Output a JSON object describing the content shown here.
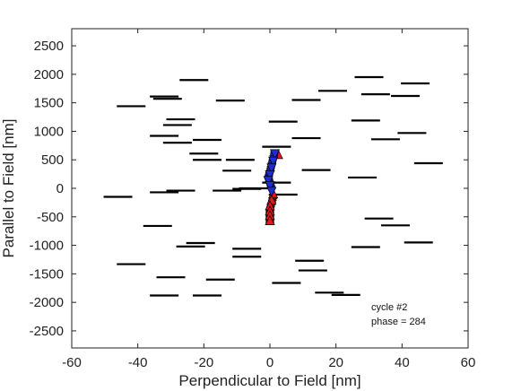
{
  "chart_data": {
    "type": "scatter",
    "title": "",
    "xlabel": "Perpendicular to Field [nm]",
    "ylabel": "Parallel to Field [nm]",
    "xlim": [
      -60,
      60
    ],
    "ylim": [
      -2800,
      2800
    ],
    "xticks": [
      -60,
      -40,
      -20,
      0,
      20,
      40,
      60
    ],
    "yticks": [
      -2500,
      -2000,
      -1500,
      -1000,
      -500,
      0,
      500,
      1000,
      1500,
      2000,
      2500
    ],
    "grid": false,
    "annotations": [
      "cycle #2",
      "phase = 284"
    ],
    "colors": {
      "segments": "#000000",
      "blue_series": "#1f2bd6",
      "red_series": "#e8161c",
      "outline": "#000000"
    },
    "segments": [
      [
        -42,
        1440
      ],
      [
        -32,
        1610
      ],
      [
        -31,
        1570
      ],
      [
        -23,
        1900
      ],
      [
        -12,
        1540
      ],
      [
        -27,
        1210
      ],
      [
        -28,
        1110
      ],
      [
        -32,
        920
      ],
      [
        -28,
        800
      ],
      [
        -19,
        850
      ],
      [
        -20,
        610
      ],
      [
        -19,
        500
      ],
      [
        -9,
        500
      ],
      [
        -10,
        310
      ],
      [
        -46,
        -150
      ],
      [
        -32,
        -70
      ],
      [
        -27,
        -40
      ],
      [
        -13,
        -40
      ],
      [
        -7,
        -10
      ],
      [
        -5,
        0
      ],
      [
        -34,
        -660
      ],
      [
        -21,
        -960
      ],
      [
        -24,
        -1020
      ],
      [
        -7,
        -1060
      ],
      [
        -7,
        -1200
      ],
      [
        -42,
        -1330
      ],
      [
        -30,
        -1560
      ],
      [
        -15,
        -1600
      ],
      [
        -32,
        -1880
      ],
      [
        -19,
        -1880
      ],
      [
        4,
        -110
      ],
      [
        2,
        100
      ],
      [
        2,
        730
      ],
      [
        11,
        880
      ],
      [
        14,
        320
      ],
      [
        4,
        1170
      ],
      [
        11,
        1550
      ],
      [
        19,
        1710
      ],
      [
        29,
        1190
      ],
      [
        30,
        1950
      ],
      [
        32,
        1650
      ],
      [
        41,
        1620
      ],
      [
        44,
        1840
      ],
      [
        35,
        860
      ],
      [
        43,
        970
      ],
      [
        48,
        440
      ],
      [
        28,
        190
      ],
      [
        33,
        -530
      ],
      [
        38,
        -650
      ],
      [
        45,
        -950
      ],
      [
        29,
        -1030
      ],
      [
        12,
        -1270
      ],
      [
        13,
        -1440
      ],
      [
        5,
        -1660
      ],
      [
        18,
        -1830
      ],
      [
        23,
        -1870
      ]
    ],
    "blue_series": [
      [
        1.5,
        600
      ],
      [
        1.0,
        470
      ],
      [
        0.5,
        350
      ],
      [
        0.0,
        230
      ],
      [
        -0.5,
        130
      ],
      [
        0.0,
        40
      ],
      [
        0.5,
        -60
      ]
    ],
    "red_series": [
      [
        2.5,
        600
      ],
      [
        1.0,
        -90
      ],
      [
        0.5,
        -200
      ],
      [
        0.0,
        -300
      ],
      [
        0.0,
        -390
      ],
      [
        0.0,
        -470
      ],
      [
        0.0,
        -560
      ]
    ]
  }
}
